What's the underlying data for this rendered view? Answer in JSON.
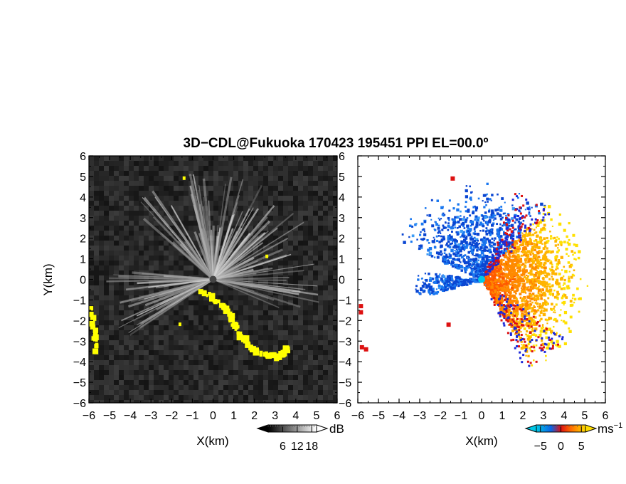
{
  "title": "3D−CDL@Fukuoka 170423 195451 PPI EL=00.0º",
  "colors": {
    "panel_bg_left": "#222222",
    "echo_grey": "#d8d8d8",
    "highlight_yellow": "#ffff00",
    "approaching_blue": "#0a64e6",
    "receding_orange": "#ff6a00",
    "receding_yellow": "#ffdc00",
    "center_cyan": "#00c8e6",
    "edge_red": "#dd1111"
  },
  "chart_data": [
    {
      "type": "heatmap",
      "panel": "left",
      "quantity": "backscatter intensity",
      "xlabel": "X(km)",
      "ylabel": "Y(km)",
      "xlim": [
        -6,
        6
      ],
      "ylim": [
        -6,
        6
      ],
      "x_tick_labels": [
        "−6",
        "−5",
        "−4",
        "−3",
        "−2",
        "−1",
        "0",
        "1",
        "2",
        "3",
        "4",
        "5",
        "6"
      ],
      "y_tick_labels": [
        "6",
        "5",
        "4",
        "3",
        "2",
        "1",
        "0",
        "−1",
        "−2",
        "−3",
        "−4",
        "−5",
        "−6"
      ],
      "radar_center": [
        0,
        0
      ],
      "colorbar": {
        "unit": "dB",
        "ticks": [
          "6",
          "12",
          "18"
        ],
        "range": [
          0,
          20
        ],
        "colors": [
          "#000000",
          "#ffffff"
        ]
      },
      "highlight_regions": [
        {
          "name": "south-east band",
          "points": [
            [
              -0.5,
              -0.6
            ],
            [
              0.5,
              -1.3
            ],
            [
              1.3,
              -2.6
            ],
            [
              2.0,
              -3.5
            ],
            [
              3.2,
              -3.8
            ],
            [
              3.6,
              -3.4
            ]
          ]
        },
        {
          "name": "west edge",
          "points": [
            [
              -5.9,
              -1.5
            ],
            [
              -5.6,
              -3.5
            ]
          ]
        },
        {
          "name": "small spots",
          "points": [
            [
              -1.4,
              4.9
            ],
            [
              2.6,
              1.1
            ],
            [
              -1.6,
              -2.2
            ]
          ]
        }
      ]
    },
    {
      "type": "heatmap",
      "panel": "right",
      "quantity": "Doppler velocity",
      "xlabel": "X(km)",
      "ylabel": "",
      "xlim": [
        -6,
        6
      ],
      "ylim": [
        -6,
        6
      ],
      "x_tick_labels": [
        "−6",
        "−5",
        "−4",
        "−3",
        "−2",
        "−1",
        "0",
        "1",
        "2",
        "3",
        "4",
        "5",
        "6"
      ],
      "y_tick_labels": [
        "6",
        "5",
        "4",
        "3",
        "2",
        "1",
        "0",
        "−1",
        "−2",
        "−3",
        "−4",
        "−5",
        "−6"
      ],
      "radar_center": [
        0,
        0
      ],
      "colorbar": {
        "unit": "ms",
        "unit_exponent": "−1",
        "ticks": [
          "−5",
          "0",
          "5"
        ],
        "range": [
          -6,
          6
        ],
        "colors": [
          "#00c8e6",
          "#0a64e6",
          "#dd1111",
          "#ff6a00",
          "#ffdc00"
        ]
      },
      "velocity_sectors": [
        {
          "direction": "north-west",
          "bearing_range_deg": [
            -65,
            40
          ],
          "max_range_km": 4.9,
          "sign": "negative"
        },
        {
          "direction": "west",
          "bearing_range_deg": [
            -105,
            -82
          ],
          "max_range_km": 3.4,
          "sign": "negative"
        },
        {
          "direction": "east",
          "bearing_range_deg": [
            40,
            150
          ],
          "max_range_km": 5.2,
          "sign": "positive"
        }
      ]
    }
  ]
}
